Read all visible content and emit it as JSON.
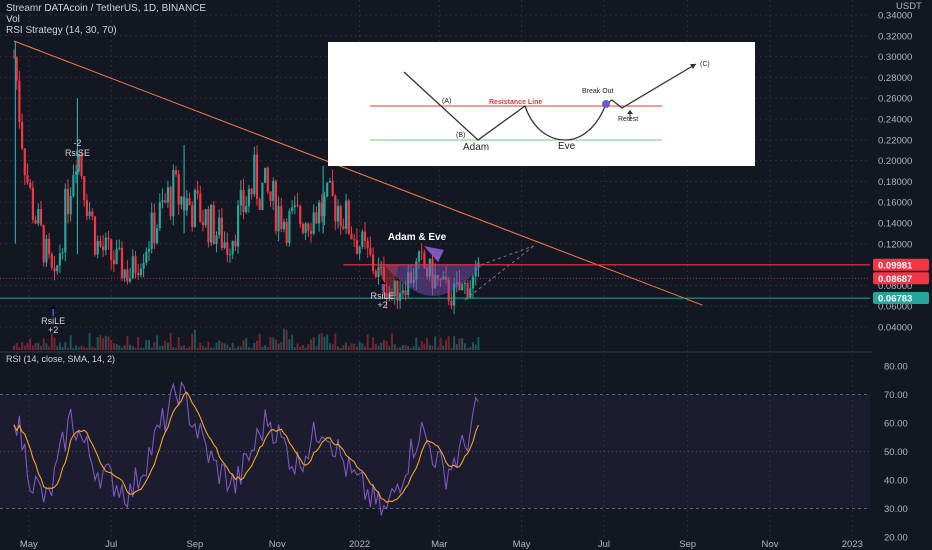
{
  "header": {
    "symbol": "Streamr DATAcoin / TetherUS, 1D, BINANCE",
    "vol_label": "Vol",
    "strategy_label": "RSI Strategy (14, 30, 70)"
  },
  "price_axis": {
    "currency": "USDT",
    "ticks": [
      "0.34000",
      "0.32000",
      "0.30000",
      "0.28000",
      "0.26000",
      "0.24000",
      "0.22000",
      "0.20000",
      "0.18000",
      "0.16000",
      "0.14000",
      "0.12000",
      "0.08000",
      "0.06000",
      "0.04000"
    ],
    "badges": [
      {
        "label": "0.09981",
        "color": "#f23645"
      },
      {
        "label": "0.08687",
        "color": "#f23645"
      },
      {
        "label": "0.06783",
        "color": "#26a69a"
      }
    ]
  },
  "rsi_panel": {
    "title": "RSI (14, close, SMA, 14, 2)",
    "ticks": [
      "80.00",
      "70.00",
      "60.00",
      "50.00",
      "40.00",
      "30.00",
      "20.00"
    ]
  },
  "time_axis": {
    "labels": [
      "May",
      "Jul",
      "Sep",
      "Nov",
      "2022",
      "Mar",
      "May",
      "Jul",
      "Sep",
      "Nov",
      "2023"
    ]
  },
  "annotations": {
    "pattern_label": "Adam & Eve",
    "signals": [
      {
        "name": "RsiSE",
        "line1": "RsiSE",
        "line2": "-2"
      },
      {
        "name": "RsiLE-1",
        "line1": "RsiLE",
        "line2": "+2"
      },
      {
        "name": "RsiLE-2",
        "line1": "RsiLE",
        "line2": "+2"
      }
    ]
  },
  "inset": {
    "label_a": "(A)",
    "label_b": "(B)",
    "label_c": "(C)",
    "resistance": "Resistance Line",
    "break_out": "Break Out",
    "retest": "Retest",
    "adam": "Adam",
    "eve": "Eve"
  },
  "colors": {
    "background": "#131722",
    "up": "#26a69a",
    "down": "#f23645",
    "rsi": "#7e57c2",
    "rsi_ma": "#f5a623",
    "trendline": "#f57c48",
    "resistance": "#f23645",
    "support": "#26a69a"
  },
  "chart_data": {
    "type": "candlestick",
    "symbol": "Streamr DATAcoin / TetherUS",
    "interval": "1D",
    "exchange": "BINANCE",
    "price_range": [
      0.03,
      0.345
    ],
    "key_levels": {
      "resistance": 0.09981,
      "current": 0.08687,
      "support": 0.06783
    },
    "price_path": [
      {
        "t": "2021-04-20",
        "close": 0.3
      },
      {
        "t": "2021-05-01",
        "close": 0.17
      },
      {
        "t": "2021-05-20",
        "close": 0.08
      },
      {
        "t": "2021-06-05",
        "close": 0.22
      },
      {
        "t": "2021-06-20",
        "close": 0.12
      },
      {
        "t": "2021-07-15",
        "close": 0.09
      },
      {
        "t": "2021-08-15",
        "close": 0.17
      },
      {
        "t": "2021-09-05",
        "close": 0.15
      },
      {
        "t": "2021-09-25",
        "close": 0.12
      },
      {
        "t": "2021-10-15",
        "close": 0.18
      },
      {
        "t": "2021-11-10",
        "close": 0.14
      },
      {
        "t": "2021-12-15",
        "close": 0.16
      },
      {
        "t": "2022-01-01",
        "close": 0.12
      },
      {
        "t": "2022-01-25",
        "close": 0.07
      },
      {
        "t": "2022-02-15",
        "close": 0.1
      },
      {
        "t": "2022-03-10",
        "close": 0.07
      },
      {
        "t": "2022-03-30",
        "close": 0.0869
      }
    ],
    "rsi": {
      "title": "RSI (14, close, SMA, 14, 2)",
      "range": [
        20,
        80
      ],
      "bands": [
        30,
        70
      ],
      "values": [
        {
          "t": "2021-04-20",
          "v": 65
        },
        {
          "t": "2021-05-03",
          "v": 40
        },
        {
          "t": "2021-05-15",
          "v": 32
        },
        {
          "t": "2021-06-01",
          "v": 62
        },
        {
          "t": "2021-06-20",
          "v": 44
        },
        {
          "t": "2021-07-15",
          "v": 35
        },
        {
          "t": "2021-08-20",
          "v": 72
        },
        {
          "t": "2021-09-15",
          "v": 45
        },
        {
          "t": "2021-10-01",
          "v": 38
        },
        {
          "t": "2021-10-25",
          "v": 62
        },
        {
          "t": "2021-11-15",
          "v": 45
        },
        {
          "t": "2021-12-05",
          "v": 60
        },
        {
          "t": "2021-12-25",
          "v": 42
        },
        {
          "t": "2022-01-20",
          "v": 28
        },
        {
          "t": "2022-02-15",
          "v": 58
        },
        {
          "t": "2022-03-05",
          "v": 42
        },
        {
          "t": "2022-03-20",
          "v": 52
        },
        {
          "t": "2022-03-30",
          "v": 66
        }
      ]
    }
  }
}
